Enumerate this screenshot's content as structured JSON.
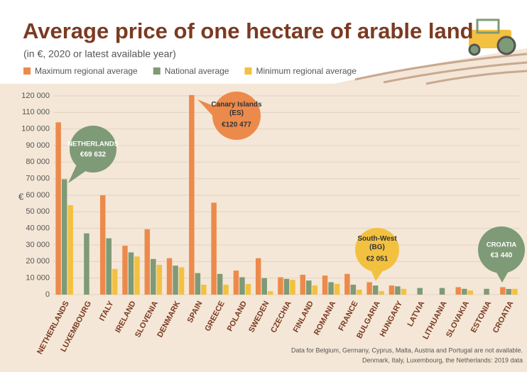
{
  "chart_data": {
    "type": "bar",
    "title": "Average price of one hectare of arable land",
    "subtitle": "(in €, 2020 or latest available year)",
    "y_label": "€",
    "categories": [
      "NETHERLANDS",
      "LUXEMBOURG",
      "ITALY",
      "IRELAND",
      "SLOVENIA",
      "DENMARK",
      "SPAIN",
      "GREECE",
      "POLAND",
      "SWEDEN",
      "CZECHIA",
      "FINLAND",
      "ROMANIA",
      "FRANCE",
      "BULGARIA",
      "HUNGARY",
      "LATVIA",
      "LITHUANIA",
      "SLOVAKIA",
      "ESTONIA",
      "CROATIA"
    ],
    "series": [
      {
        "name": "Maximum regional average",
        "color": "#ec8a4c",
        "values": [
          104000,
          null,
          60000,
          29500,
          39500,
          22000,
          120477,
          55500,
          14500,
          22000,
          10500,
          12000,
          11500,
          12500,
          7500,
          5500,
          null,
          null,
          4500,
          null,
          4500
        ]
      },
      {
        "name": "National average",
        "color": "#7e9a76",
        "values": [
          69632,
          37000,
          34000,
          25500,
          21500,
          17500,
          13000,
          12500,
          10500,
          10000,
          9500,
          8500,
          7500,
          6000,
          5500,
          5000,
          4000,
          4000,
          3500,
          3500,
          3440
        ]
      },
      {
        "name": "Minimum regional average",
        "color": "#f3c140",
        "values": [
          54000,
          null,
          15500,
          23000,
          18000,
          16500,
          6000,
          6000,
          6500,
          2000,
          9000,
          5500,
          6500,
          3000,
          2051,
          3500,
          null,
          null,
          2500,
          null,
          3500
        ]
      }
    ],
    "ylim": [
      0,
      120000
    ],
    "yticks": [
      {
        "value": 0,
        "label": "0"
      },
      {
        "value": 10000,
        "label": "10 000"
      },
      {
        "value": 20000,
        "label": "20 000"
      },
      {
        "value": 30000,
        "label": "30 000"
      },
      {
        "value": 40000,
        "label": "40 000"
      },
      {
        "value": 50000,
        "label": "50 000"
      },
      {
        "value": 60000,
        "label": "60 000"
      },
      {
        "value": 70000,
        "label": "70 000"
      },
      {
        "value": 80000,
        "label": "80 000"
      },
      {
        "value": 90000,
        "label": "90 000"
      },
      {
        "value": 100000,
        "label": "100 000"
      },
      {
        "value": 110000,
        "label": "110 000"
      },
      {
        "value": 120000,
        "label": "120 000"
      }
    ],
    "grid": true,
    "annotations": [
      {
        "title": "NETHERLANDS",
        "text": "€69 632"
      },
      {
        "title": "Canary Islands (ES)",
        "text": "€120 477"
      },
      {
        "title": "South-West (BG)",
        "text": "€2 051"
      },
      {
        "title": "CROATIA",
        "text": "€3 440"
      }
    ],
    "footnote": [
      "Data for Belgium, Germany, Cyprus, Malta, Austria and Portugal are not available.",
      "Denmark, Italy, Luxembourg, the Netherlands: 2019 data"
    ]
  }
}
